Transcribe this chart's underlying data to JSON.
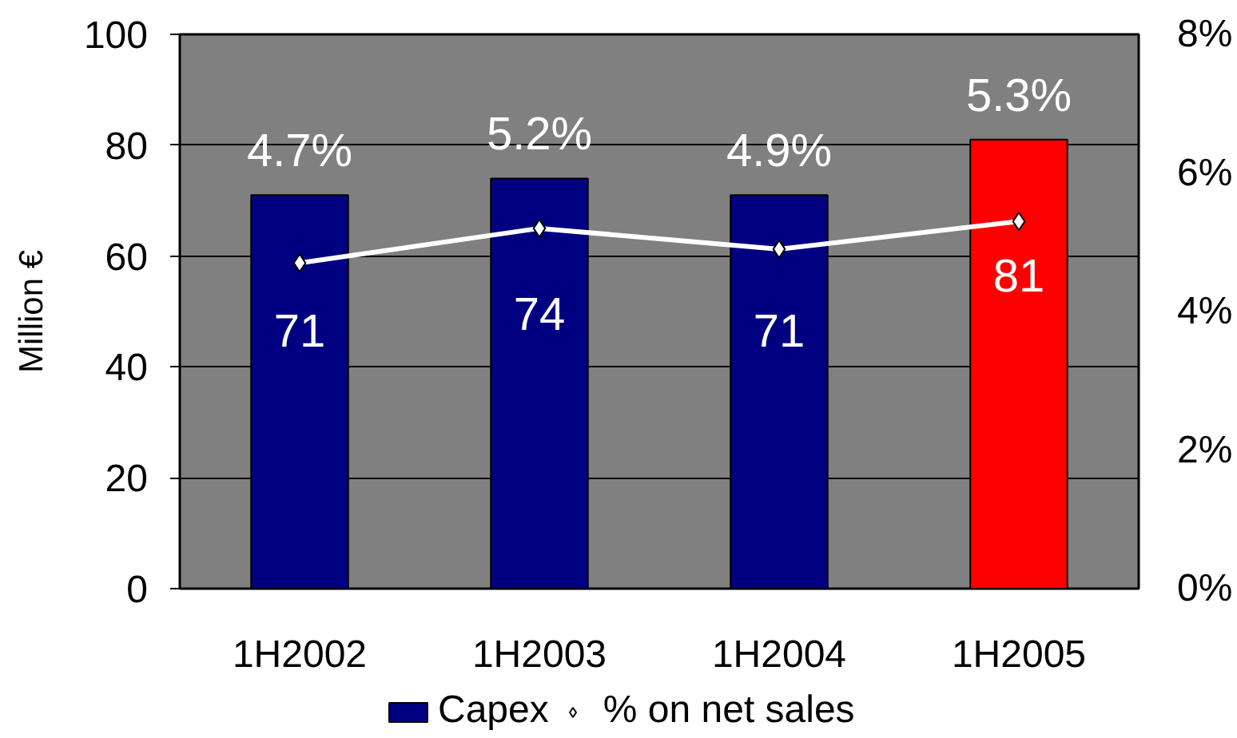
{
  "chart_data": {
    "type": "bar",
    "ylabel": "Million €",
    "categories": [
      "1H2002",
      "1H2003",
      "1H2004",
      "1H2005"
    ],
    "series": [
      {
        "name": "Capex",
        "color": "#000080",
        "colors": [
          "#000080",
          "#000080",
          "#000080",
          "#ff0000"
        ],
        "values": [
          71,
          74,
          71,
          81
        ],
        "value_labels": [
          "71",
          "74",
          "71",
          "81"
        ]
      },
      {
        "name": "% on net sales",
        "type": "line",
        "axis": "y2",
        "color": "#ffffff",
        "values": [
          4.7,
          5.2,
          4.9,
          5.3
        ],
        "value_labels": [
          "4.7%",
          "5.2%",
          "4.9%",
          "5.3%"
        ]
      }
    ],
    "ylim": [
      0,
      100
    ],
    "yticks": [
      0,
      20,
      40,
      60,
      80,
      100
    ],
    "y2lim": [
      0,
      8
    ],
    "y2ticks": [
      {
        "value": 0,
        "label": "0%"
      },
      {
        "value": 2,
        "label": "2%"
      },
      {
        "value": 4,
        "label": "4%"
      },
      {
        "value": 6,
        "label": "6%"
      },
      {
        "value": 8,
        "label": "8%"
      }
    ],
    "grid": "y",
    "legend": "bottom",
    "marker": "diamond"
  }
}
